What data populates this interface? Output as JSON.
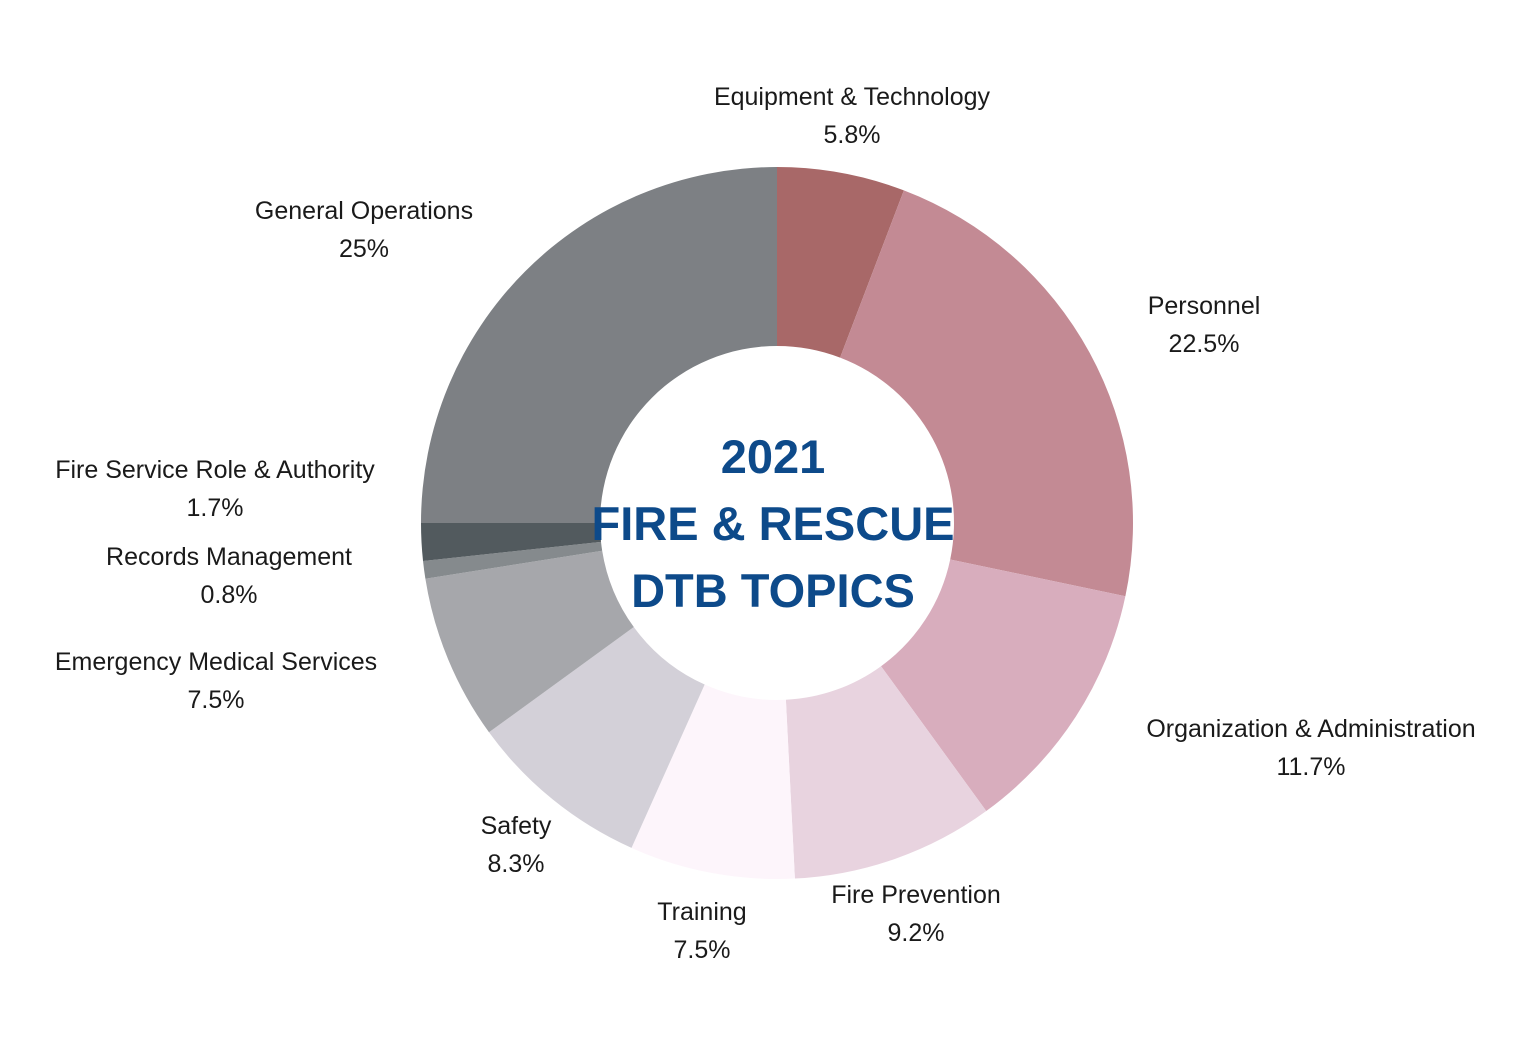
{
  "chart_data": {
    "type": "pie",
    "donut": true,
    "title": "2021 FIRE & RESCUE DTB TOPICS",
    "title_lines": [
      "2021",
      "FIRE & RESCUE",
      "DTB TOPICS"
    ],
    "title_color": "#0d4a8a",
    "slices": [
      {
        "label": "Equipment & Technology",
        "value": 5.8,
        "value_label": "5.8%",
        "color": "#a86868"
      },
      {
        "label": "Personnel",
        "value": 22.5,
        "value_label": "22.5%",
        "color": "#c38a94"
      },
      {
        "label": "Organization & Administration",
        "value": 11.7,
        "value_label": "11.7%",
        "color": "#d8adbd"
      },
      {
        "label": "Fire Prevention",
        "value": 9.2,
        "value_label": "9.2%",
        "color": "#e8d3df"
      },
      {
        "label": "Training",
        "value": 7.5,
        "value_label": "7.5%",
        "color": "#fdf5fb"
      },
      {
        "label": "Safety",
        "value": 8.3,
        "value_label": "8.3%",
        "color": "#d3d0d8"
      },
      {
        "label": "Emergency Medical Services",
        "value": 7.5,
        "value_label": "7.5%",
        "color": "#a6a7ab"
      },
      {
        "label": "Records Management",
        "value": 0.8,
        "value_label": "0.8%",
        "color": "#858a8d"
      },
      {
        "label": "Fire Service Role & Authority",
        "value": 1.7,
        "value_label": "1.7%",
        "color": "#525a5e"
      },
      {
        "label": "General Operations",
        "value": 25,
        "value_label": "25%",
        "color": "#7d8084"
      }
    ]
  }
}
